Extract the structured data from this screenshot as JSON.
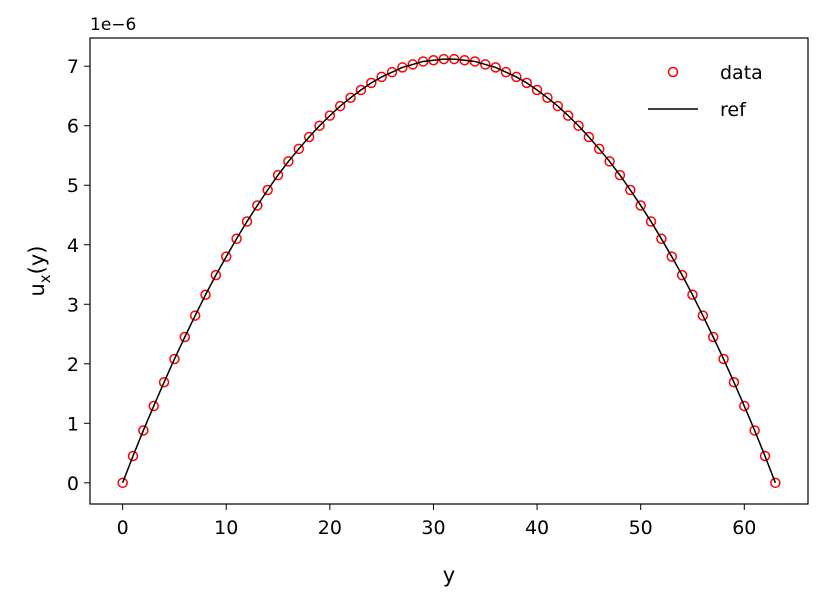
{
  "chart_data": {
    "type": "line",
    "xlabel": "y",
    "ylabel": {
      "base": "u",
      "sub": "x",
      "tail": "(y)"
    },
    "offset_label": "1e−6",
    "x": [
      0,
      1,
      2,
      3,
      4,
      5,
      6,
      7,
      8,
      9,
      10,
      11,
      12,
      13,
      14,
      15,
      16,
      17,
      18,
      19,
      20,
      21,
      22,
      23,
      24,
      25,
      26,
      27,
      28,
      29,
      30,
      31,
      32,
      33,
      34,
      35,
      36,
      37,
      38,
      39,
      40,
      41,
      42,
      43,
      44,
      45,
      46,
      47,
      48,
      49,
      50,
      51,
      52,
      53,
      54,
      55,
      56,
      57,
      58,
      59,
      60,
      61,
      62,
      63
    ],
    "series": [
      {
        "name": "data",
        "style": "markers",
        "color": "#ff0000",
        "values": [
          0,
          0.45,
          0.88,
          1.29,
          1.69,
          2.08,
          2.45,
          2.81,
          3.16,
          3.49,
          3.8,
          4.1,
          4.39,
          4.66,
          4.92,
          5.17,
          5.4,
          5.61,
          5.81,
          6.0,
          6.17,
          6.33,
          6.47,
          6.6,
          6.72,
          6.82,
          6.9,
          6.98,
          7.03,
          7.08,
          7.1,
          7.12,
          7.12,
          7.1,
          7.08,
          7.03,
          6.98,
          6.9,
          6.82,
          6.72,
          6.6,
          6.47,
          6.33,
          6.17,
          6.0,
          5.81,
          5.61,
          5.4,
          5.17,
          4.92,
          4.66,
          4.39,
          4.1,
          3.8,
          3.49,
          3.16,
          2.81,
          2.45,
          2.08,
          1.69,
          1.29,
          0.88,
          0.45,
          0
        ]
      },
      {
        "name": "ref",
        "style": "line",
        "color": "#000000",
        "values": [
          0,
          0.45,
          0.88,
          1.29,
          1.69,
          2.08,
          2.45,
          2.81,
          3.16,
          3.49,
          3.8,
          4.1,
          4.39,
          4.66,
          4.92,
          5.17,
          5.4,
          5.61,
          5.81,
          6.0,
          6.17,
          6.33,
          6.47,
          6.6,
          6.72,
          6.82,
          6.9,
          6.98,
          7.03,
          7.08,
          7.1,
          7.12,
          7.12,
          7.1,
          7.08,
          7.03,
          6.98,
          6.9,
          6.82,
          6.72,
          6.6,
          6.47,
          6.33,
          6.17,
          6.0,
          5.81,
          5.61,
          5.4,
          5.17,
          4.92,
          4.66,
          4.39,
          4.1,
          3.8,
          3.49,
          3.16,
          2.81,
          2.45,
          2.08,
          1.69,
          1.29,
          0.88,
          0.45,
          0
        ]
      }
    ],
    "xlim": [
      -3.15,
      66.15
    ],
    "ylim": [
      -0.356,
      7.474
    ],
    "xticks": [
      0,
      10,
      20,
      30,
      40,
      50,
      60
    ],
    "yticks": [
      0,
      1,
      2,
      3,
      4,
      5,
      6,
      7
    ],
    "legend": "upper right",
    "grid": false
  }
}
